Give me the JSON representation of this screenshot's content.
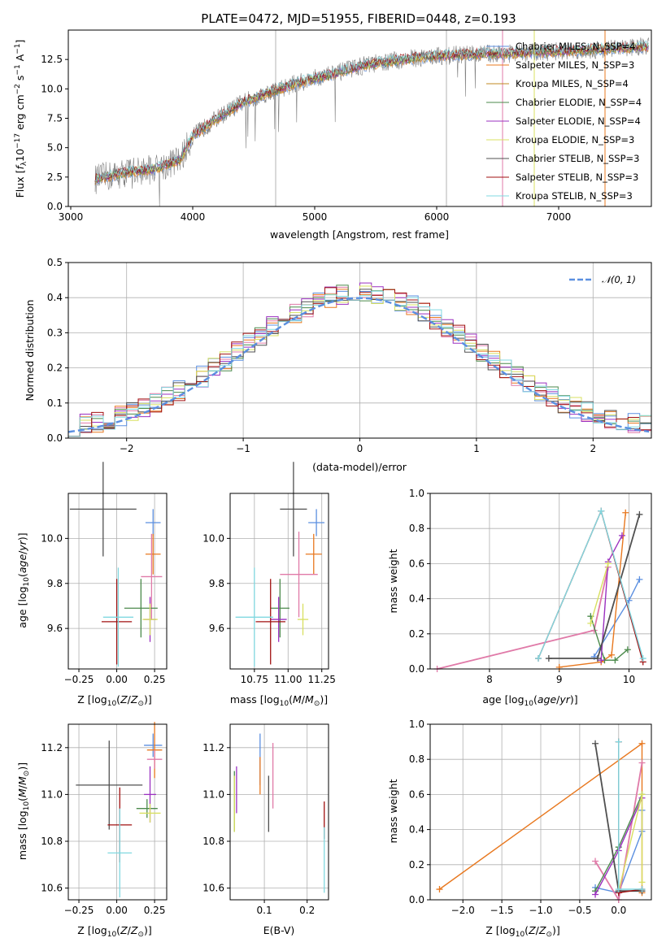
{
  "chart_data": [
    {
      "id": "spectrum",
      "type": "line",
      "title": "PLATE=0472, MJD=51955, FIBERID=0448, z=0.193",
      "xlabel": "wavelength [Angstrom, rest frame]",
      "ylabel": "Flux [f_λ10^-17 erg cm^-2 s^-1 A^-1]",
      "xlim": [
        2980,
        7760
      ],
      "ylim": [
        0,
        15
      ],
      "xticks": [
        "3000",
        "4000",
        "5000",
        "6000",
        "7000"
      ],
      "yticks": [
        "0.0",
        "2.5",
        "5.0",
        "7.5",
        "10.0",
        "12.5"
      ],
      "legend": [
        "Chabrier MILES, N_SSP=4",
        "Salpeter MILES, N_SSP=3",
        "Kroupa MILES, N_SSP=4",
        "Chabrier ELODIE, N_SSP=4",
        "Salpeter ELODIE, N_SSP=4",
        "Kroupa ELODIE, N_SSP=3",
        "Chabrier STELIB, N_SSP=3",
        "Salpeter STELIB, N_SSP=3",
        "Kroupa STELIB, N_SSP=3"
      ],
      "legend_placement": "right",
      "grid": false,
      "continuum": {
        "x": [
          3200,
          3500,
          3700,
          3900,
          4000,
          4200,
          4400,
          4600,
          4800,
          5000,
          5200,
          5400,
          5600,
          5800,
          6000,
          6200,
          6400,
          6600,
          6800,
          7000,
          7200,
          7400,
          7700
        ],
        "y": [
          2.3,
          3.0,
          3.2,
          4.0,
          6.0,
          7.5,
          8.8,
          9.6,
          10.3,
          10.9,
          11.4,
          12.0,
          12.3,
          12.6,
          12.8,
          12.9,
          13.0,
          13.0,
          13.1,
          13.2,
          13.3,
          13.4,
          13.6
        ]
      }
    },
    {
      "id": "residuals",
      "type": "line",
      "xlabel": "(data-model)/error",
      "ylabel": "Normed distribution",
      "xlim": [
        -2.5,
        2.5
      ],
      "ylim": [
        0,
        0.5
      ],
      "xticks": [
        "−2",
        "−1",
        "0",
        "1",
        "2"
      ],
      "yticks": [
        "0.0",
        "0.1",
        "0.2",
        "0.3",
        "0.4",
        "0.5"
      ],
      "legend": [
        "𝒩(0, 1)"
      ],
      "legend_placement": "top-right",
      "grid": true,
      "bin_width": 0.1
    },
    {
      "id": "age-vs-Z",
      "type": "scatter",
      "xlabel": "Z [log10(Z/Z⊙)]",
      "ylabel": "age [log10(age/yr)]",
      "xlim": [
        -0.32,
        0.33
      ],
      "ylim": [
        9.42,
        10.2
      ],
      "xticks": [
        "−0.25",
        "0.00",
        "0.25"
      ],
      "yticks": [
        "9.6",
        "9.8",
        "10.0"
      ],
      "grid": true,
      "points": [
        {
          "x": 0.24,
          "y": 10.07,
          "xerr": 0.05,
          "yerr": 0.06
        },
        {
          "x": 0.24,
          "y": 9.93,
          "xerr": 0.05,
          "yerr": 0.09
        },
        {
          "x": 0.23,
          "y": 9.83,
          "xerr": 0.07,
          "yerr": 0.19
        },
        {
          "x": 0.16,
          "y": 9.69,
          "xerr": 0.11,
          "yerr": 0.13
        },
        {
          "x": 0.22,
          "y": 9.64,
          "xerr": 0.04,
          "yerr": 0.1
        },
        {
          "x": 0.22,
          "y": 9.64,
          "xerr": 0.05,
          "yerr": 0.07
        },
        {
          "x": -0.09,
          "y": 10.13,
          "xerr": 0.22,
          "yerr": 0.21
        },
        {
          "x": 0.0,
          "y": 9.63,
          "xerr": 0.1,
          "yerr": 0.19
        },
        {
          "x": 0.01,
          "y": 9.65,
          "xerr": 0.1,
          "yerr": 0.22
        }
      ]
    },
    {
      "id": "age-vs-mass",
      "type": "scatter",
      "xlabel": "mass [log10(M/M⊙)]",
      "ylabel": "",
      "xlim": [
        10.57,
        11.3
      ],
      "ylim": [
        9.42,
        10.2
      ],
      "xticks": [
        "10.75",
        "11.00",
        "11.25"
      ],
      "yticks": [
        "9.6",
        "9.8",
        "10.0"
      ],
      "grid": true,
      "points": [
        {
          "x": 11.21,
          "y": 10.07,
          "xerr": 0.06,
          "yerr": 0.06
        },
        {
          "x": 11.19,
          "y": 9.93,
          "xerr": 0.06,
          "yerr": 0.09
        },
        {
          "x": 11.08,
          "y": 9.84,
          "xerr": 0.14,
          "yerr": 0.19
        },
        {
          "x": 10.94,
          "y": 9.69,
          "xerr": 0.07,
          "yerr": 0.13
        },
        {
          "x": 10.93,
          "y": 9.64,
          "xerr": 0.06,
          "yerr": 0.1
        },
        {
          "x": 11.11,
          "y": 9.64,
          "xerr": 0.04,
          "yerr": 0.07
        },
        {
          "x": 11.04,
          "y": 10.13,
          "xerr": 0.1,
          "yerr": 0.21
        },
        {
          "x": 10.87,
          "y": 9.63,
          "xerr": 0.11,
          "yerr": 0.19
        },
        {
          "x": 10.75,
          "y": 9.65,
          "xerr": 0.14,
          "yerr": 0.22
        }
      ]
    },
    {
      "id": "massweight-vs-age",
      "type": "line",
      "xlabel": "age [log10(age/yr)]",
      "ylabel": "mass weight",
      "xlim": [
        7.15,
        10.32
      ],
      "ylim": [
        0,
        1
      ],
      "xticks": [
        "8",
        "9",
        "10"
      ],
      "yticks": [
        "0.0",
        "0.2",
        "0.4",
        "0.6",
        "0.8",
        "1.0"
      ],
      "grid": true,
      "series": [
        {
          "x": [
            9.5,
            10.0,
            10.15
          ],
          "y": [
            0.07,
            0.39,
            0.51
          ]
        },
        {
          "x": [
            9.0,
            9.6,
            9.75,
            9.95
          ],
          "y": [
            0.01,
            0.04,
            0.08,
            0.89
          ]
        },
        {
          "x": [
            7.25,
            9.5,
            9.7
          ],
          "y": [
            0.0,
            0.22,
            0.58
          ]
        },
        {
          "x": [
            9.45,
            9.65,
            9.8,
            9.98
          ],
          "y": [
            0.3,
            0.05,
            0.05,
            0.11
          ]
        },
        {
          "x": [
            9.6,
            9.7,
            9.9
          ],
          "y": [
            0.05,
            0.61,
            0.76
          ]
        },
        {
          "x": [
            9.45,
            9.7
          ],
          "y": [
            0.26,
            0.6
          ]
        },
        {
          "x": [
            8.85,
            9.55,
            10.15
          ],
          "y": [
            0.06,
            0.06,
            0.88
          ]
        },
        {
          "x": [
            8.7,
            9.6,
            10.2
          ],
          "y": [
            0.06,
            0.9,
            0.04
          ]
        },
        {
          "x": [
            8.7,
            9.6,
            10.2
          ],
          "y": [
            0.06,
            0.9,
            0.06
          ]
        }
      ]
    },
    {
      "id": "mass-vs-Z",
      "type": "scatter",
      "xlabel": "Z [log10(Z/Z⊙)]",
      "ylabel": "mass [log10(M/M⊙)]",
      "xlim": [
        -0.32,
        0.33
      ],
      "ylim": [
        10.55,
        11.3
      ],
      "xticks": [
        "−0.25",
        "0.00",
        "0.25"
      ],
      "yticks": [
        "10.6",
        "10.8",
        "11.0",
        "11.2"
      ],
      "grid": true,
      "points": [
        {
          "x": 0.24,
          "y": 11.21,
          "xerr": 0.06,
          "yerr": 0.05
        },
        {
          "x": 0.25,
          "y": 11.19,
          "xerr": 0.05,
          "yerr": 0.12
        },
        {
          "x": 0.25,
          "y": 11.15,
          "xerr": 0.05,
          "yerr": 0.04
        },
        {
          "x": 0.2,
          "y": 10.94,
          "xerr": 0.07,
          "yerr": 0.04
        },
        {
          "x": 0.22,
          "y": 11.0,
          "xerr": 0.04,
          "yerr": 0.12
        },
        {
          "x": 0.22,
          "y": 10.92,
          "xerr": 0.07,
          "yerr": 0.04
        },
        {
          "x": -0.05,
          "y": 11.04,
          "xerr": 0.22,
          "yerr": 0.19
        },
        {
          "x": 0.02,
          "y": 10.87,
          "xerr": 0.08,
          "yerr": 0.16
        },
        {
          "x": 0.02,
          "y": 10.75,
          "xerr": 0.08,
          "yerr": 0.19
        }
      ]
    },
    {
      "id": "mass-vs-EBV",
      "type": "scatter",
      "xlabel": "E(B-V)",
      "ylabel": "",
      "xlim": [
        0.02,
        0.25
      ],
      "ylim": [
        10.55,
        11.3
      ],
      "xticks": [
        "0.1",
        "0.2"
      ],
      "yticks": [
        "10.6",
        "10.8",
        "11.0",
        "11.2"
      ],
      "grid": true,
      "points": [
        {
          "x": 0.09,
          "y": 11.15,
          "xerr": 0.0,
          "yerr": 0.11
        },
        {
          "x": 0.09,
          "y": 11.08,
          "xerr": 0.0,
          "yerr": 0.08
        },
        {
          "x": 0.12,
          "y": 11.08,
          "xerr": 0.0,
          "yerr": 0.14
        },
        {
          "x": 0.03,
          "y": 10.97,
          "xerr": 0.0,
          "yerr": 0.13
        },
        {
          "x": 0.035,
          "y": 11.02,
          "xerr": 0.0,
          "yerr": 0.1
        },
        {
          "x": 0.03,
          "y": 10.96,
          "xerr": 0.0,
          "yerr": 0.12
        },
        {
          "x": 0.11,
          "y": 10.96,
          "xerr": 0.0,
          "yerr": 0.12
        },
        {
          "x": 0.24,
          "y": 10.89,
          "xerr": 0.0,
          "yerr": 0.08
        },
        {
          "x": 0.24,
          "y": 10.72,
          "xerr": 0.0,
          "yerr": 0.14
        }
      ]
    },
    {
      "id": "massweight-vs-Z",
      "type": "line",
      "xlabel": "Z [log10(Z/Z⊙)]",
      "ylabel": "mass weight",
      "xlim": [
        -2.42,
        0.42
      ],
      "ylim": [
        0,
        1
      ],
      "xticks": [
        "−2.0",
        "−1.5",
        "−1.0",
        "−0.5",
        "0.0"
      ],
      "yticks": [
        "0.0",
        "0.2",
        "0.4",
        "0.6",
        "0.8",
        "1.0"
      ],
      "grid": true,
      "series": [
        {
          "x": [
            -0.3,
            0.0,
            0.3,
            0.3
          ],
          "y": [
            0.07,
            0.04,
            0.39,
            0.51
          ]
        },
        {
          "x": [
            -2.3,
            0.3,
            0.3
          ],
          "y": [
            0.06,
            0.89,
            0.04
          ]
        },
        {
          "x": [
            -0.3,
            0.0,
            0.3
          ],
          "y": [
            0.22,
            0.0,
            0.78
          ]
        },
        {
          "x": [
            -0.3,
            0.0,
            0.3
          ],
          "y": [
            0.05,
            0.3,
            0.6
          ]
        },
        {
          "x": [
            -0.3,
            0.0,
            0.3
          ],
          "y": [
            0.03,
            0.28,
            0.58
          ]
        },
        {
          "x": [
            0.0,
            0.3,
            0.3
          ],
          "y": [
            0.05,
            0.6,
            0.1
          ]
        },
        {
          "x": [
            -0.3,
            0.0,
            0.3
          ],
          "y": [
            0.89,
            0.05,
            0.05
          ]
        },
        {
          "x": [
            0.0,
            0.0,
            0.3
          ],
          "y": [
            0.9,
            0.04,
            0.06
          ]
        },
        {
          "x": [
            0.0,
            0.0,
            0.3
          ],
          "y": [
            0.9,
            0.06,
            0.06
          ]
        }
      ]
    }
  ],
  "colors": [
    "#5b8fe0",
    "#e8781f",
    "#c08a20",
    "#4b8a4b",
    "#9b30c0",
    "#d8e060",
    "#505050",
    "#a01010",
    "#80d8e0"
  ],
  "colors_scatter": [
    "#5b8fe0",
    "#e8781f",
    "#e07aa8",
    "#4b8a4b",
    "#9b30c0",
    "#d8e060",
    "#505050",
    "#a01010",
    "#80d8e0"
  ],
  "colors_weight_age": [
    "#5b8fe0",
    "#e8781f",
    "#e07aa8",
    "#4b8a4b",
    "#9b30c0",
    "#d8e060",
    "#505050",
    "#a01010",
    "#80d8e0"
  ],
  "gaussian_color": "#5b8fe0",
  "spectrum_data_color": "#808080"
}
